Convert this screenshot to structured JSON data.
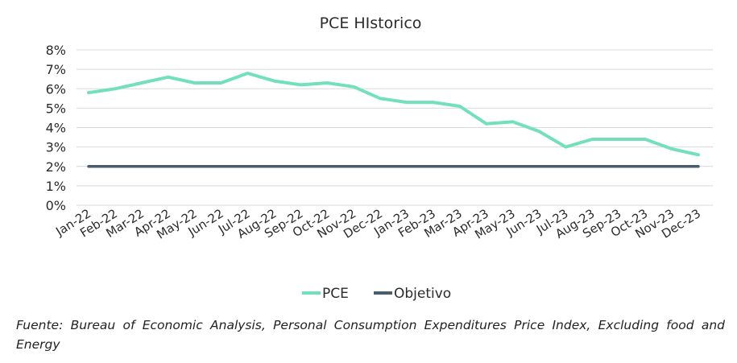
{
  "chart_data": {
    "type": "line",
    "title": "PCE HIstorico",
    "categories": [
      "Jan-22",
      "Feb-22",
      "Mar-22",
      "Apr-22",
      "May-22",
      "Jun-22",
      "Jul-22",
      "Aug-22",
      "Sep-22",
      "Oct-22",
      "Nov-22",
      "Dec-22",
      "Jan-23",
      "Feb-23",
      "Mar-23",
      "Apr-23",
      "May-23",
      "Jun-23",
      "Jul-23",
      "Aug-23",
      "Sep-23",
      "Oct-23",
      "Nov-23",
      "Dec-23"
    ],
    "series": [
      {
        "name": "PCE",
        "color": "#72e0bc",
        "values": [
          5.8,
          6.0,
          6.3,
          6.6,
          6.3,
          6.3,
          6.8,
          6.4,
          6.2,
          6.3,
          6.1,
          5.5,
          5.3,
          5.3,
          5.1,
          4.2,
          4.3,
          3.8,
          3.0,
          3.4,
          3.4,
          3.4,
          2.9,
          2.6
        ]
      },
      {
        "name": "Objetivo",
        "color": "#4a5d6b",
        "values": [
          2,
          2,
          2,
          2,
          2,
          2,
          2,
          2,
          2,
          2,
          2,
          2,
          2,
          2,
          2,
          2,
          2,
          2,
          2,
          2,
          2,
          2,
          2,
          2
        ]
      }
    ],
    "yticks": [
      "0%",
      "1%",
      "2%",
      "3%",
      "4%",
      "5%",
      "6%",
      "7%",
      "8%"
    ],
    "ylim": [
      0,
      8
    ],
    "grid": true,
    "legend_position": "bottom"
  },
  "source_note": "Fuente: Bureau of Economic Analysis, Personal Consumption Expenditures Price Index, Excluding food and Energy"
}
